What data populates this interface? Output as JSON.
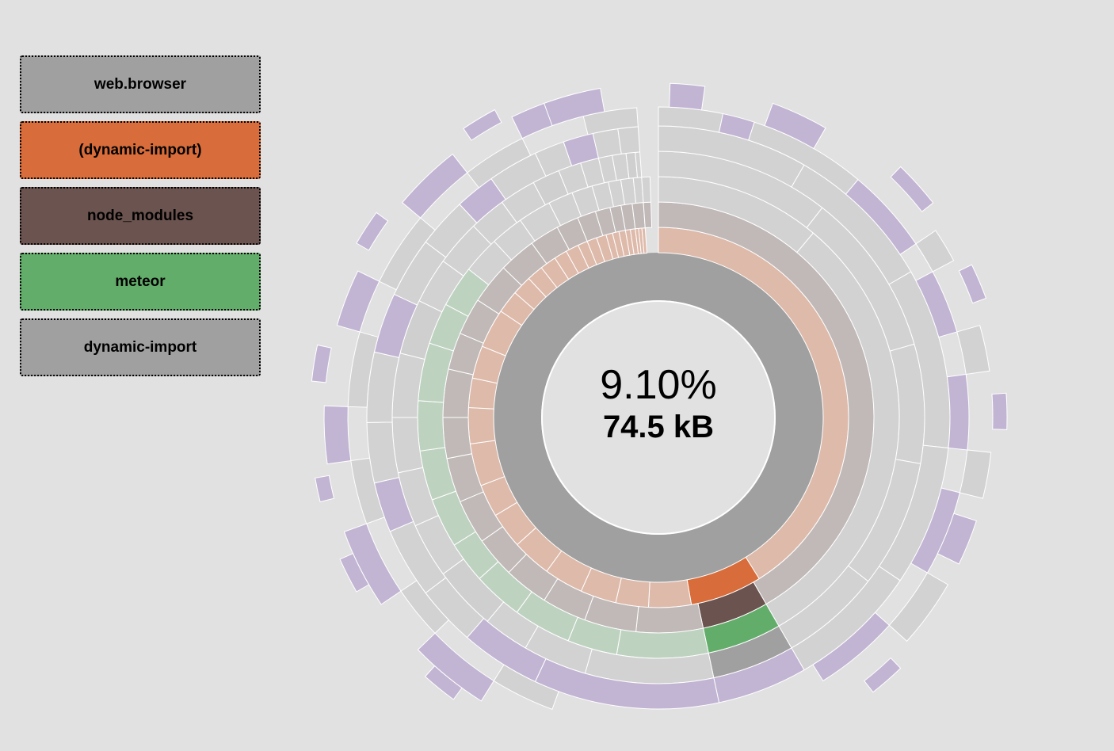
{
  "breadcrumb": [
    {
      "label": "web.browser",
      "color": "#a0a0a0"
    },
    {
      "label": "(dynamic-import)",
      "color": "#d86c3a"
    },
    {
      "label": "node_modules",
      "color": "#6b534f"
    },
    {
      "label": "meteor",
      "color": "#63ad6b"
    },
    {
      "label": "dynamic-import",
      "color": "#a0a0a0"
    }
  ],
  "center": {
    "percentage": "9.10%",
    "size": "74.5 kB"
  },
  "colors": {
    "background": "#e1e1e1",
    "web_browser": "#a0a0a0",
    "dynamic_import_group": "#d86c3a",
    "node_modules": "#6b534f",
    "meteor": "#63ad6b",
    "dynamic_import_pkg": "#a0a0a0",
    "file": "#9b80c2",
    "other": "#c8c8c8"
  },
  "chart_data": {
    "type": "sunburst",
    "highlighted_path": [
      "web.browser",
      "(dynamic-import)",
      "node_modules",
      "meteor",
      "dynamic-import"
    ],
    "highlighted_share_percent": 9.1,
    "highlighted_size": "74.5 kB"
  }
}
